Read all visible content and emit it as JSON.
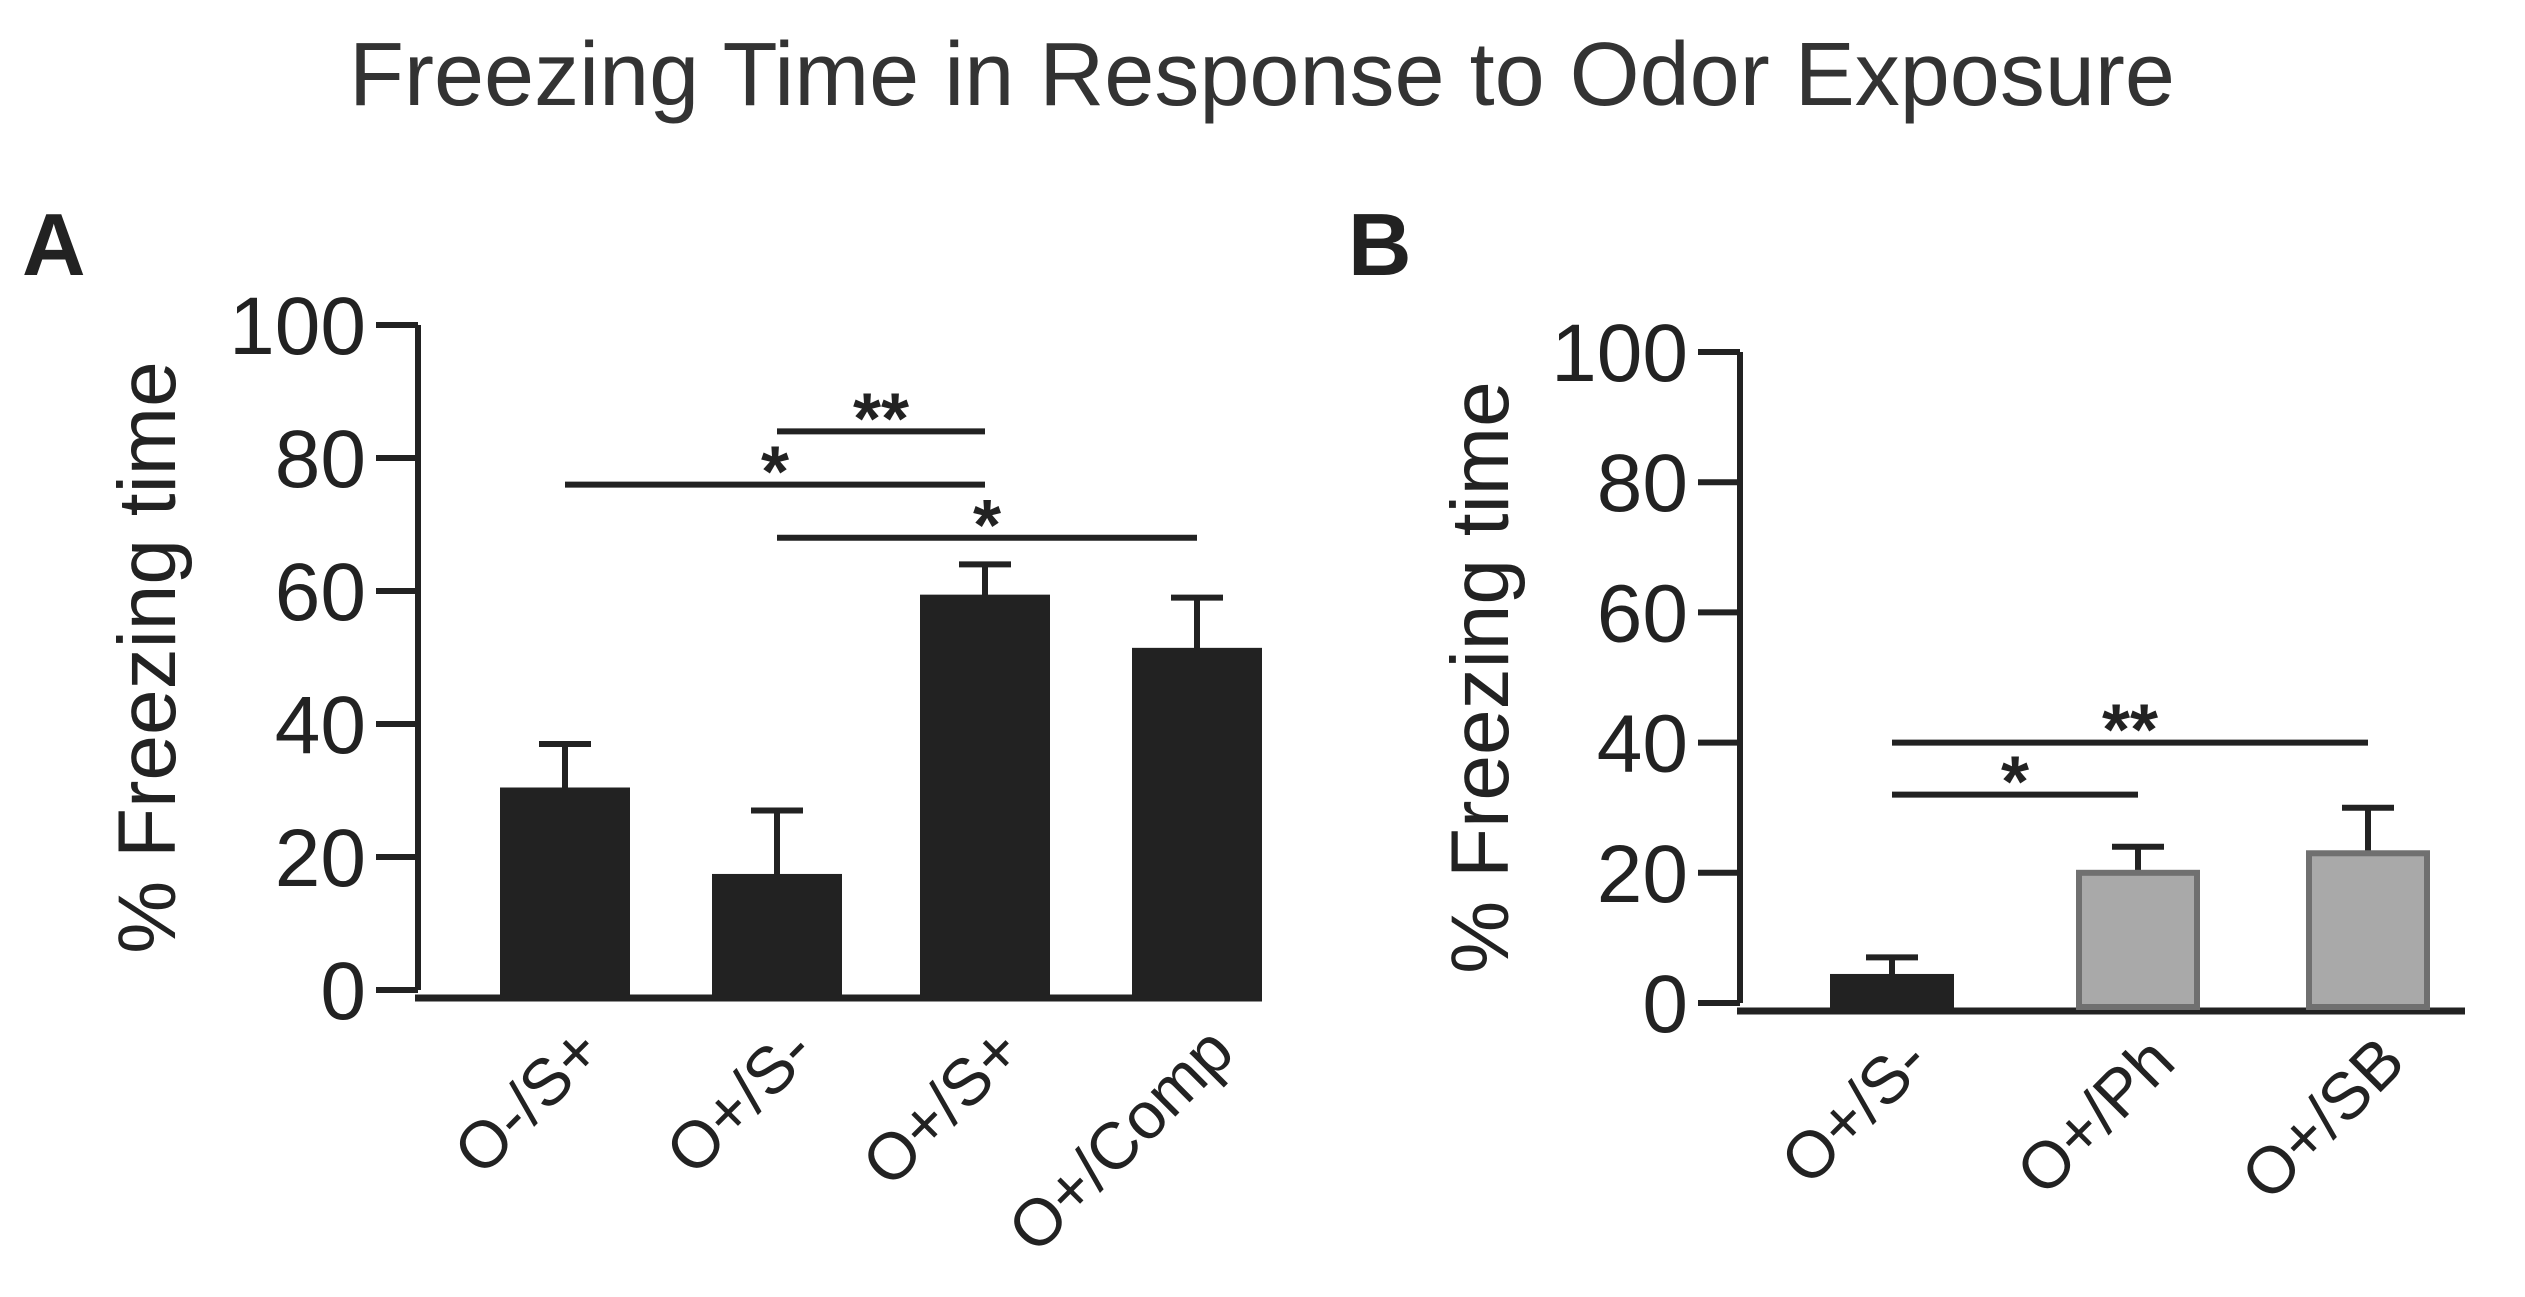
{
  "title": "Freezing Time in Response to Odor Exposure",
  "chart_data": [
    {
      "panel": "A",
      "type": "bar",
      "ylabel": "% Freezing time",
      "ylim": [
        0,
        100
      ],
      "yticks": [
        0,
        20,
        40,
        60,
        80,
        100
      ],
      "categories": [
        "O-/S+",
        "O+/S-",
        "O+/S+",
        "O+/Comp"
      ],
      "values": [
        30,
        17,
        59,
        51
      ],
      "errors": [
        7,
        10,
        5,
        8
      ],
      "bar_fill": [
        "#222222",
        "#222222",
        "#222222",
        "#222222"
      ],
      "bar_stroke": [
        "#222222",
        "#222222",
        "#222222",
        "#222222"
      ],
      "significance": [
        {
          "from": 1,
          "to": 2,
          "label": "**",
          "y": 84
        },
        {
          "from": 0,
          "to": 2,
          "label": "*",
          "y": 76
        },
        {
          "from": 1,
          "to": 3,
          "label": "*",
          "y": 68
        }
      ]
    },
    {
      "panel": "B",
      "type": "bar",
      "ylabel": "% Freezing time",
      "ylim": [
        0,
        100
      ],
      "yticks": [
        0,
        20,
        40,
        60,
        80,
        100
      ],
      "categories": [
        "O+/S-",
        "O+/Ph",
        "O+/SB"
      ],
      "values": [
        4,
        20,
        23
      ],
      "errors": [
        3,
        4,
        7
      ],
      "bar_fill": [
        "#222222",
        "#a9a9a9",
        "#a9a9a9"
      ],
      "bar_stroke": [
        "#222222",
        "#707070",
        "#707070"
      ],
      "significance": [
        {
          "from": 0,
          "to": 2,
          "label": "**",
          "y": 40
        },
        {
          "from": 0,
          "to": 1,
          "label": "*",
          "y": 32
        }
      ]
    }
  ]
}
